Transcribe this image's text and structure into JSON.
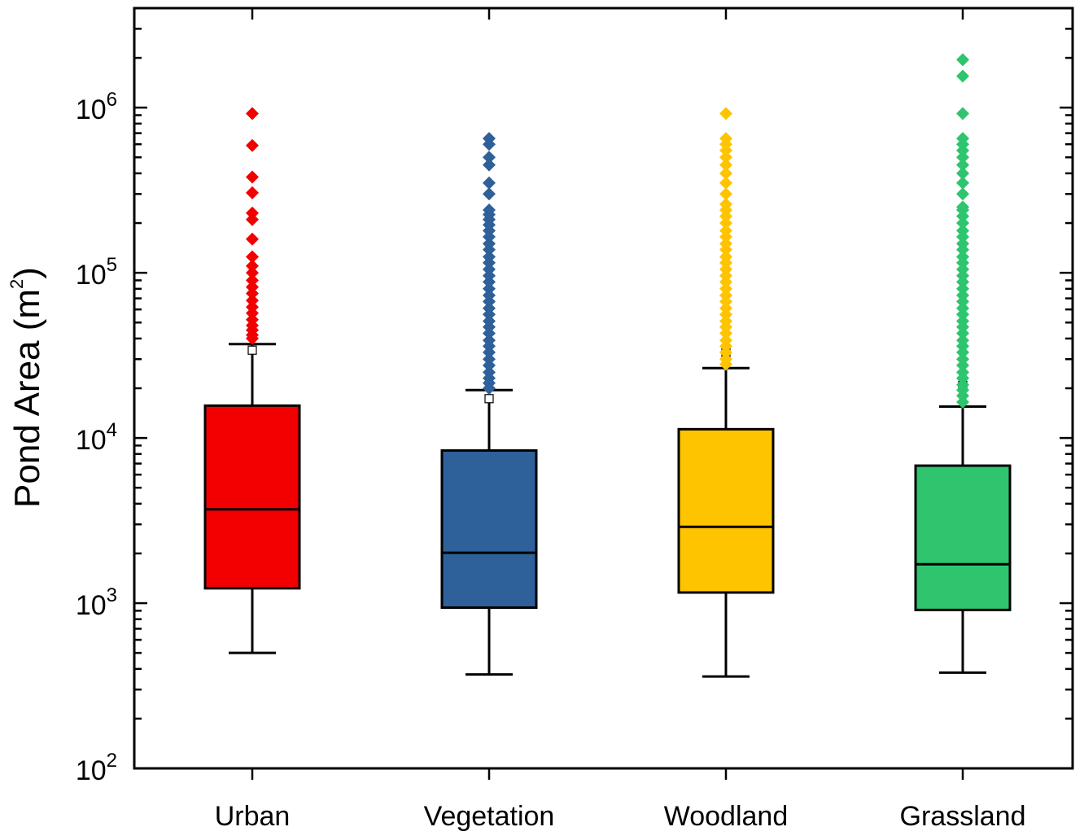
{
  "chart_data": {
    "type": "box",
    "ylabel": "Pond Area (m",
    "ylabel_sup": "2",
    "ylabel_close": ")",
    "yscale": "log",
    "ylim": [
      100,
      4000000
    ],
    "yticks": [
      {
        "value": 100,
        "base": "10",
        "exp": "2"
      },
      {
        "value": 1000,
        "base": "10",
        "exp": "3"
      },
      {
        "value": 10000,
        "base": "10",
        "exp": "4"
      },
      {
        "value": 100000,
        "base": "10",
        "exp": "5"
      },
      {
        "value": 1000000,
        "base": "10",
        "exp": "6"
      }
    ],
    "grid": false,
    "categories": [
      "Urban",
      "Vegetation",
      "Woodland",
      "Grassland"
    ],
    "boxes": [
      {
        "name": "Urban",
        "color": "#f20000",
        "whisker_low": 500,
        "q1": 1230,
        "median": 3700,
        "q3": 15700,
        "whisker_high": 37000,
        "mean": 34000,
        "outliers": [
          920000,
          590000,
          380000,
          305000,
          230000,
          210000,
          160000,
          125000,
          110000,
          100000,
          90000,
          82000,
          75000,
          68000,
          62000,
          57000,
          52000,
          48000,
          45000,
          42000,
          40000
        ]
      },
      {
        "name": "Vegetation",
        "color": "#2e6099",
        "whisker_low": 370,
        "q1": 940,
        "median": 2020,
        "q3": 8400,
        "whisker_high": 19500,
        "mean": 17300,
        "outliers": [
          650000,
          600000,
          500000,
          450000,
          350000,
          300000,
          240000,
          225000,
          210000,
          195000,
          180000,
          165000,
          150000,
          138000,
          125000,
          115000,
          105000,
          96000,
          88000,
          80000,
          73000,
          67000,
          61000,
          56000,
          51000,
          47000,
          43000,
          39000,
          36000,
          33000,
          30000,
          27500,
          25000,
          23000,
          21500,
          20000
        ]
      },
      {
        "name": "Woodland",
        "color": "#ffc400",
        "whisker_low": 360,
        "q1": 1160,
        "median": 2900,
        "q3": 11300,
        "whisker_high": 26500,
        "mean": 33000,
        "outliers": [
          920000,
          650000,
          600000,
          550000,
          500000,
          450000,
          400000,
          350000,
          300000,
          260000,
          240000,
          220000,
          200000,
          180000,
          165000,
          150000,
          138000,
          125000,
          115000,
          105000,
          96000,
          88000,
          80000,
          73000,
          67000,
          61000,
          56000,
          51000,
          47000,
          43000,
          39000,
          36000,
          33000,
          30000,
          28000
        ]
      },
      {
        "name": "Grassland",
        "color": "#2ec56e",
        "whisker_low": 380,
        "q1": 910,
        "median": 1720,
        "q3": 6800,
        "whisker_high": 15500,
        "mean": 20800,
        "outliers": [
          1950000,
          1550000,
          920000,
          650000,
          600000,
          550000,
          500000,
          450000,
          400000,
          350000,
          300000,
          250000,
          240000,
          220000,
          200000,
          180000,
          165000,
          150000,
          138000,
          125000,
          115000,
          105000,
          96000,
          88000,
          80000,
          73000,
          67000,
          61000,
          56000,
          51000,
          47000,
          43000,
          39000,
          36000,
          33000,
          30000,
          27500,
          25000,
          23000,
          21000,
          19500,
          18000,
          16500
        ]
      }
    ]
  }
}
